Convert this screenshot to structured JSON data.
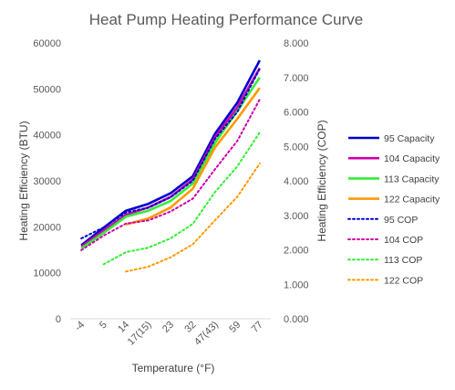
{
  "chart_data": {
    "type": "line",
    "title": "Heat Pump Heating Performance Curve",
    "xlabel": "Temperature (°F)",
    "ylabel": "Heating Efficiency (BTU)",
    "y2label": "Heating Efficiency (COP)",
    "categories": [
      "-4",
      "5",
      "14",
      "17(15)",
      "23",
      "32",
      "47(43)",
      "59",
      "77"
    ],
    "ylim": [
      0,
      60000
    ],
    "y2lim": [
      0,
      8
    ],
    "yticks": [
      "0",
      "10000",
      "20000",
      "30000",
      "40000",
      "50000",
      "60000"
    ],
    "y2ticks": [
      "0.000",
      "1.000",
      "2.000",
      "3.000",
      "4.000",
      "5.000",
      "6.000",
      "7.000",
      "8.000"
    ],
    "grid": false,
    "legend": "right",
    "series": [
      {
        "name": "95 Capacity",
        "axis": "left",
        "style": "solid",
        "color": "#0000CC",
        "values": [
          16000,
          19800,
          23500,
          25000,
          27300,
          31000,
          40300,
          47000,
          56200
        ]
      },
      {
        "name": "104 Capacity",
        "axis": "left",
        "style": "solid",
        "color": "#CC00AA",
        "values": [
          15700,
          19200,
          22600,
          24200,
          26500,
          30300,
          39500,
          46000,
          54500
        ]
      },
      {
        "name": "113 Capacity",
        "axis": "left",
        "style": "solid",
        "color": "#33EE33",
        "values": [
          15300,
          18700,
          22200,
          23500,
          25600,
          29400,
          38300,
          45200,
          52500
        ]
      },
      {
        "name": "122 Capacity",
        "axis": "left",
        "style": "solid",
        "color": "#FF9900",
        "values": [
          null,
          null,
          20500,
          21800,
          24200,
          28300,
          37300,
          43500,
          50200
        ]
      },
      {
        "name": "95 COP",
        "axis": "right",
        "style": "dotted",
        "color": "#0000CC",
        "values": [
          2.33,
          2.65,
          3.08,
          3.22,
          3.52,
          4.0,
          5.22,
          6.0,
          7.25
        ]
      },
      {
        "name": "104 COP",
        "axis": "right",
        "style": "dotted",
        "color": "#CC00AA",
        "values": [
          1.99,
          2.41,
          2.76,
          2.85,
          3.11,
          3.48,
          4.34,
          5.16,
          6.36
        ]
      },
      {
        "name": "113 COP",
        "axis": "right",
        "style": "dotted",
        "color": "#33EE33",
        "values": [
          null,
          1.58,
          1.93,
          2.06,
          2.33,
          2.75,
          3.68,
          4.42,
          5.4
        ]
      },
      {
        "name": "122 COP",
        "axis": "right",
        "style": "dotted",
        "color": "#FF9900",
        "values": [
          null,
          null,
          1.37,
          1.51,
          1.78,
          2.16,
          2.86,
          3.54,
          4.5
        ]
      }
    ]
  }
}
